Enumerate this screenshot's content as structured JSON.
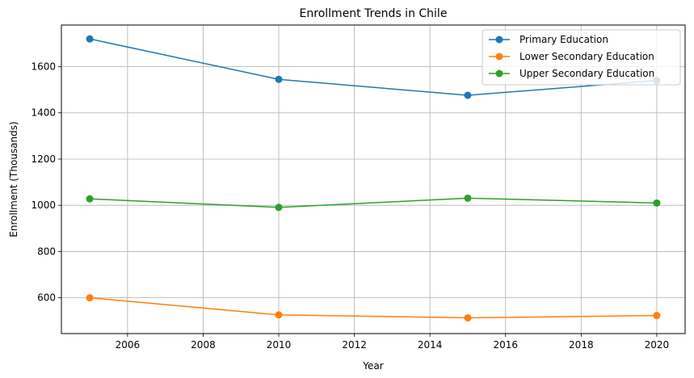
{
  "chart_data": {
    "type": "line",
    "title": "Enrollment Trends in Chile",
    "xlabel": "Year",
    "ylabel": "Enrollment (Thousands)",
    "x": [
      2005,
      2010,
      2015,
      2020
    ],
    "xlim": [
      2004.25,
      2020.75
    ],
    "ylim": [
      445,
      1780
    ],
    "xticks": [
      2006,
      2008,
      2010,
      2012,
      2014,
      2016,
      2018,
      2020
    ],
    "yticks": [
      600,
      800,
      1000,
      1200,
      1400,
      1600
    ],
    "grid": true,
    "legend_position": "top-right",
    "series": [
      {
        "name": "Primary Education",
        "color": "#1f77b4",
        "values": [
          1720,
          1545,
          1476,
          1540
        ]
      },
      {
        "name": "Lower Secondary Education",
        "color": "#ff7f0e",
        "values": [
          600,
          526,
          513,
          523
        ]
      },
      {
        "name": "Upper Secondary Education",
        "color": "#2ca02c",
        "values": [
          1028,
          991,
          1031,
          1010
        ]
      }
    ]
  }
}
